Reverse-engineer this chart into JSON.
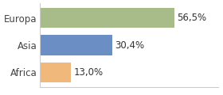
{
  "categories": [
    "Africa",
    "Asia",
    "Europa"
  ],
  "values": [
    13.0,
    30.4,
    56.5
  ],
  "bar_colors": [
    "#f0b87a",
    "#6b8ec4",
    "#a8bc8a"
  ],
  "labels": [
    "13,0%",
    "30,4%",
    "56,5%"
  ],
  "background_color": "#ffffff",
  "xlim": [
    0,
    75
  ],
  "bar_height": 0.75,
  "label_fontsize": 8.5,
  "tick_fontsize": 8.5
}
